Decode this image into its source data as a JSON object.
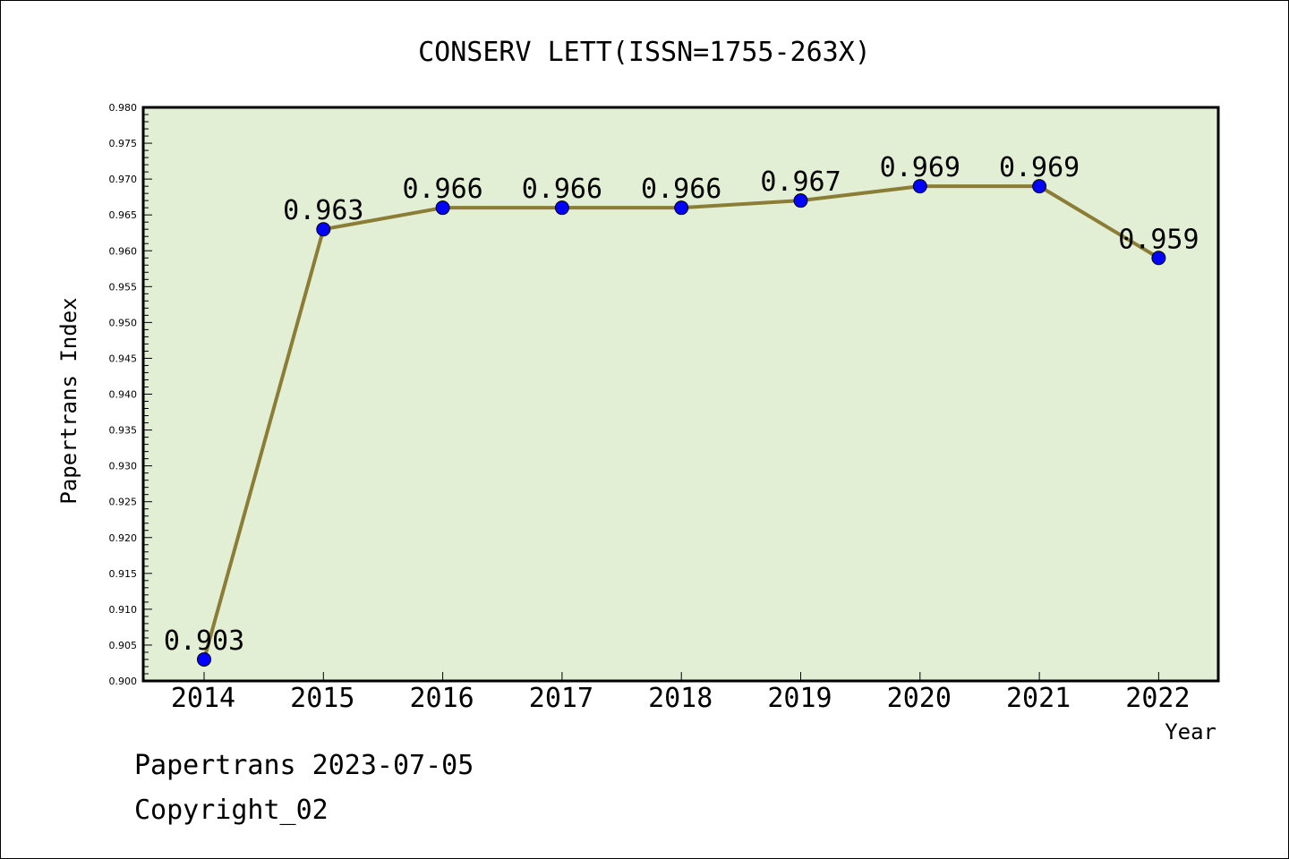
{
  "chart_data": {
    "type": "line",
    "title": "CONSERV LETT(ISSN=1755-263X)",
    "xlabel": "Year",
    "ylabel": "Papertrans Index",
    "categories": [
      "2014",
      "2015",
      "2016",
      "2017",
      "2018",
      "2019",
      "2020",
      "2021",
      "2022"
    ],
    "values": [
      0.903,
      0.963,
      0.966,
      0.966,
      0.966,
      0.967,
      0.969,
      0.969,
      0.959
    ],
    "data_labels": [
      "0.903",
      "0.963",
      "0.966",
      "0.966",
      "0.966",
      "0.967",
      "0.969",
      "0.969",
      "0.959"
    ],
    "ylim": [
      0.9,
      0.98
    ],
    "ytick_labels": [
      "0.900",
      "0.905",
      "0.910",
      "0.915",
      "0.920",
      "0.925",
      "0.930",
      "0.935",
      "0.940",
      "0.945",
      "0.950",
      "0.955",
      "0.960",
      "0.965",
      "0.970",
      "0.975",
      "0.980"
    ],
    "grid": false,
    "colors": {
      "plot_background": "#e2efd5",
      "line": "#8b7d35",
      "marker": "#0000ff"
    }
  },
  "footer": {
    "line1": "Papertrans 2023-07-05",
    "line2": "Copyright_02"
  }
}
